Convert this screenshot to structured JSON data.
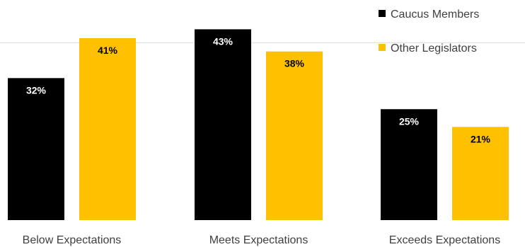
{
  "chart_data": {
    "type": "bar",
    "categories": [
      "Below Expectations",
      "Meets Expectations",
      "Exceeds Expectations"
    ],
    "series": [
      {
        "name": "Caucus Members",
        "values": [
          32,
          43,
          25
        ],
        "labels": [
          "32%",
          "43%",
          "25%"
        ],
        "color": "#000000",
        "label_color": "#ffffff"
      },
      {
        "name": "Other Legislators",
        "values": [
          41,
          38,
          21
        ],
        "labels": [
          "41%",
          "38%",
          "21%"
        ],
        "color": "#ffc000",
        "label_color": "#000000"
      }
    ],
    "ylim": [
      0,
      45
    ],
    "grid": true,
    "gridline_color": "#d9d9d9",
    "legend_position": "top-right",
    "title": "",
    "xlabel": "",
    "ylabel": ""
  }
}
